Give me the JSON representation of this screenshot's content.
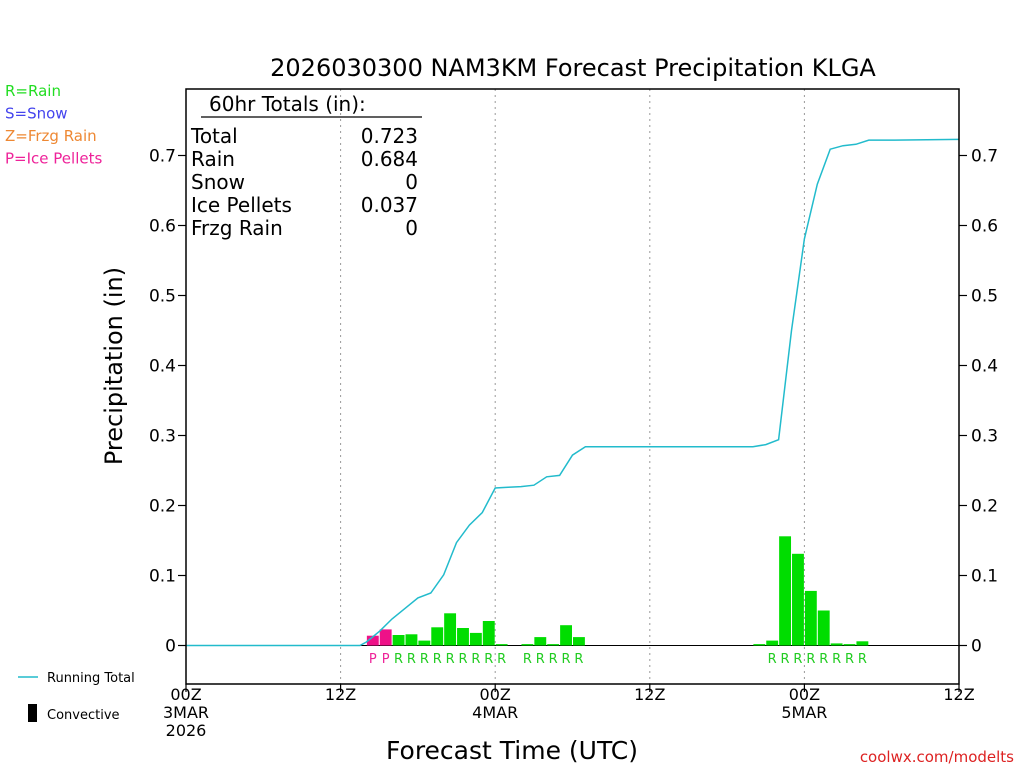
{
  "chart_data": {
    "type": "bar",
    "title": "2026030300 NAM3KM Forecast Precipitation KLGA",
    "xlabel": "Forecast Time (UTC)",
    "ylabel": "Precipitation (in)",
    "ylim": [
      -0.055,
      0.795
    ],
    "xlim": [
      0,
      60
    ],
    "yticks": [
      0,
      0.1,
      0.2,
      0.3,
      0.4,
      0.5,
      0.6,
      0.7
    ],
    "ytick_labels": [
      "0",
      "0.1",
      "0.2",
      "0.3",
      "0.4",
      "0.5",
      "0.6",
      "0.7"
    ],
    "xticks": [
      {
        "hour": 0,
        "lines": [
          "00Z",
          "3MAR",
          "2026"
        ]
      },
      {
        "hour": 12,
        "lines": [
          "12Z"
        ]
      },
      {
        "hour": 24,
        "lines": [
          "00Z",
          "4MAR"
        ]
      },
      {
        "hour": 36,
        "lines": [
          "12Z"
        ]
      },
      {
        "hour": 48,
        "lines": [
          "00Z",
          "5MAR"
        ]
      },
      {
        "hour": 60,
        "lines": [
          "12Z"
        ]
      }
    ],
    "dashed_gridlines_hours": [
      12,
      24,
      36,
      48
    ],
    "legend_types": [
      {
        "label": "R=Rain",
        "color": "#22dd22"
      },
      {
        "label": "S=Snow",
        "color": "#4444ee"
      },
      {
        "label": "Z=Frzg Rain",
        "color": "#ee8833"
      },
      {
        "label": "P=Ice Pellets",
        "color": "#ee2299"
      }
    ],
    "legend_bottom": {
      "running_total_label": "Running Total",
      "convective_label": "Convective"
    },
    "totals": {
      "header": "60hr Totals (in):",
      "rows": [
        {
          "label": "Total",
          "value": "0.723"
        },
        {
          "label": "Rain",
          "value": "0.684"
        },
        {
          "label": "Snow",
          "value": "0"
        },
        {
          "label": "Ice Pellets",
          "value": "0.037"
        },
        {
          "label": "Frzg Rain",
          "value": "0"
        }
      ]
    },
    "series": [
      {
        "name": "Hourly Precipitation",
        "bars": [
          {
            "hour": 14.5,
            "value": 0.014,
            "ptype": "P",
            "color": "#ee1188"
          },
          {
            "hour": 15.5,
            "value": 0.023,
            "ptype": "P",
            "color": "#ee1188"
          },
          {
            "hour": 16.5,
            "value": 0.015,
            "ptype": "R",
            "color": "#00dd00"
          },
          {
            "hour": 17.5,
            "value": 0.016,
            "ptype": "R",
            "color": "#00dd00"
          },
          {
            "hour": 18.5,
            "value": 0.007,
            "ptype": "R",
            "color": "#00dd00"
          },
          {
            "hour": 19.5,
            "value": 0.026,
            "ptype": "R",
            "color": "#00dd00"
          },
          {
            "hour": 20.5,
            "value": 0.046,
            "ptype": "R",
            "color": "#00dd00"
          },
          {
            "hour": 21.5,
            "value": 0.025,
            "ptype": "R",
            "color": "#00dd00"
          },
          {
            "hour": 22.5,
            "value": 0.018,
            "ptype": "R",
            "color": "#00dd00"
          },
          {
            "hour": 23.5,
            "value": 0.035,
            "ptype": "R",
            "color": "#00dd00"
          },
          {
            "hour": 24.5,
            "value": 0.002,
            "ptype": "R",
            "color": "#00dd00"
          },
          {
            "hour": 26.5,
            "value": 0.002,
            "ptype": "R",
            "color": "#00dd00"
          },
          {
            "hour": 27.5,
            "value": 0.012,
            "ptype": "R",
            "color": "#00dd00"
          },
          {
            "hour": 28.5,
            "value": 0.002,
            "ptype": "R",
            "color": "#00dd00"
          },
          {
            "hour": 29.5,
            "value": 0.029,
            "ptype": "R",
            "color": "#00dd00"
          },
          {
            "hour": 30.5,
            "value": 0.012,
            "ptype": "R",
            "color": "#00dd00"
          },
          {
            "hour": 44.5,
            "value": 0.002,
            "ptype": "R",
            "color": "#00dd00"
          },
          {
            "hour": 45.5,
            "value": 0.007,
            "ptype": "R",
            "color": "#00dd00"
          },
          {
            "hour": 46.5,
            "value": 0.156,
            "ptype": "R",
            "color": "#00dd00"
          },
          {
            "hour": 47.5,
            "value": 0.131,
            "ptype": "R",
            "color": "#00dd00"
          },
          {
            "hour": 48.5,
            "value": 0.078,
            "ptype": "R",
            "color": "#00dd00"
          },
          {
            "hour": 49.5,
            "value": 0.05,
            "ptype": "R",
            "color": "#00dd00"
          },
          {
            "hour": 50.5,
            "value": 0.003,
            "ptype": "R",
            "color": "#00dd00"
          },
          {
            "hour": 51.5,
            "value": 0.002,
            "ptype": "R",
            "color": "#00dd00"
          },
          {
            "hour": 52.5,
            "value": 0.006,
            "ptype": "R",
            "color": "#00dd00"
          }
        ],
        "type_labels": [
          {
            "hour": 14.5,
            "label": "P"
          },
          {
            "hour": 15.5,
            "label": "P"
          },
          {
            "hour": 16.5,
            "label": "R"
          },
          {
            "hour": 17.5,
            "label": "R"
          },
          {
            "hour": 18.5,
            "label": "R"
          },
          {
            "hour": 19.5,
            "label": "R"
          },
          {
            "hour": 20.5,
            "label": "R"
          },
          {
            "hour": 21.5,
            "label": "R"
          },
          {
            "hour": 22.5,
            "label": "R"
          },
          {
            "hour": 23.5,
            "label": "R"
          },
          {
            "hour": 24.5,
            "label": "R"
          },
          {
            "hour": 26.5,
            "label": "R"
          },
          {
            "hour": 27.5,
            "label": "R"
          },
          {
            "hour": 28.5,
            "label": "R"
          },
          {
            "hour": 29.5,
            "label": "R"
          },
          {
            "hour": 30.5,
            "label": "R"
          },
          {
            "hour": 45.5,
            "label": "R"
          },
          {
            "hour": 46.5,
            "label": "R"
          },
          {
            "hour": 47.5,
            "label": "R"
          },
          {
            "hour": 48.5,
            "label": "R"
          },
          {
            "hour": 49.5,
            "label": "R"
          },
          {
            "hour": 50.5,
            "label": "R"
          },
          {
            "hour": 51.5,
            "label": "R"
          },
          {
            "hour": 52.5,
            "label": "R"
          }
        ]
      },
      {
        "name": "Running Total",
        "color": "#22bbcc",
        "points": [
          [
            0,
            0
          ],
          [
            13.5,
            0
          ],
          [
            14,
            0.005
          ],
          [
            15,
            0.02
          ],
          [
            16,
            0.038
          ],
          [
            17,
            0.053
          ],
          [
            18,
            0.068
          ],
          [
            19,
            0.075
          ],
          [
            20,
            0.101
          ],
          [
            21,
            0.147
          ],
          [
            22,
            0.172
          ],
          [
            23,
            0.19
          ],
          [
            24,
            0.225
          ],
          [
            25,
            0.226
          ],
          [
            26,
            0.227
          ],
          [
            27,
            0.229
          ],
          [
            28,
            0.241
          ],
          [
            29,
            0.243
          ],
          [
            30,
            0.272
          ],
          [
            31,
            0.284
          ],
          [
            35,
            0.284
          ],
          [
            40,
            0.284
          ],
          [
            43,
            0.284
          ],
          [
            44,
            0.284
          ],
          [
            45,
            0.287
          ],
          [
            46,
            0.294
          ],
          [
            47,
            0.45
          ],
          [
            48,
            0.581
          ],
          [
            49,
            0.659
          ],
          [
            50,
            0.709
          ],
          [
            51,
            0.714
          ],
          [
            52,
            0.716
          ],
          [
            53,
            0.722
          ],
          [
            55,
            0.722
          ],
          [
            60,
            0.723
          ]
        ]
      }
    ],
    "watermark": "coolwx.com/modelts"
  }
}
